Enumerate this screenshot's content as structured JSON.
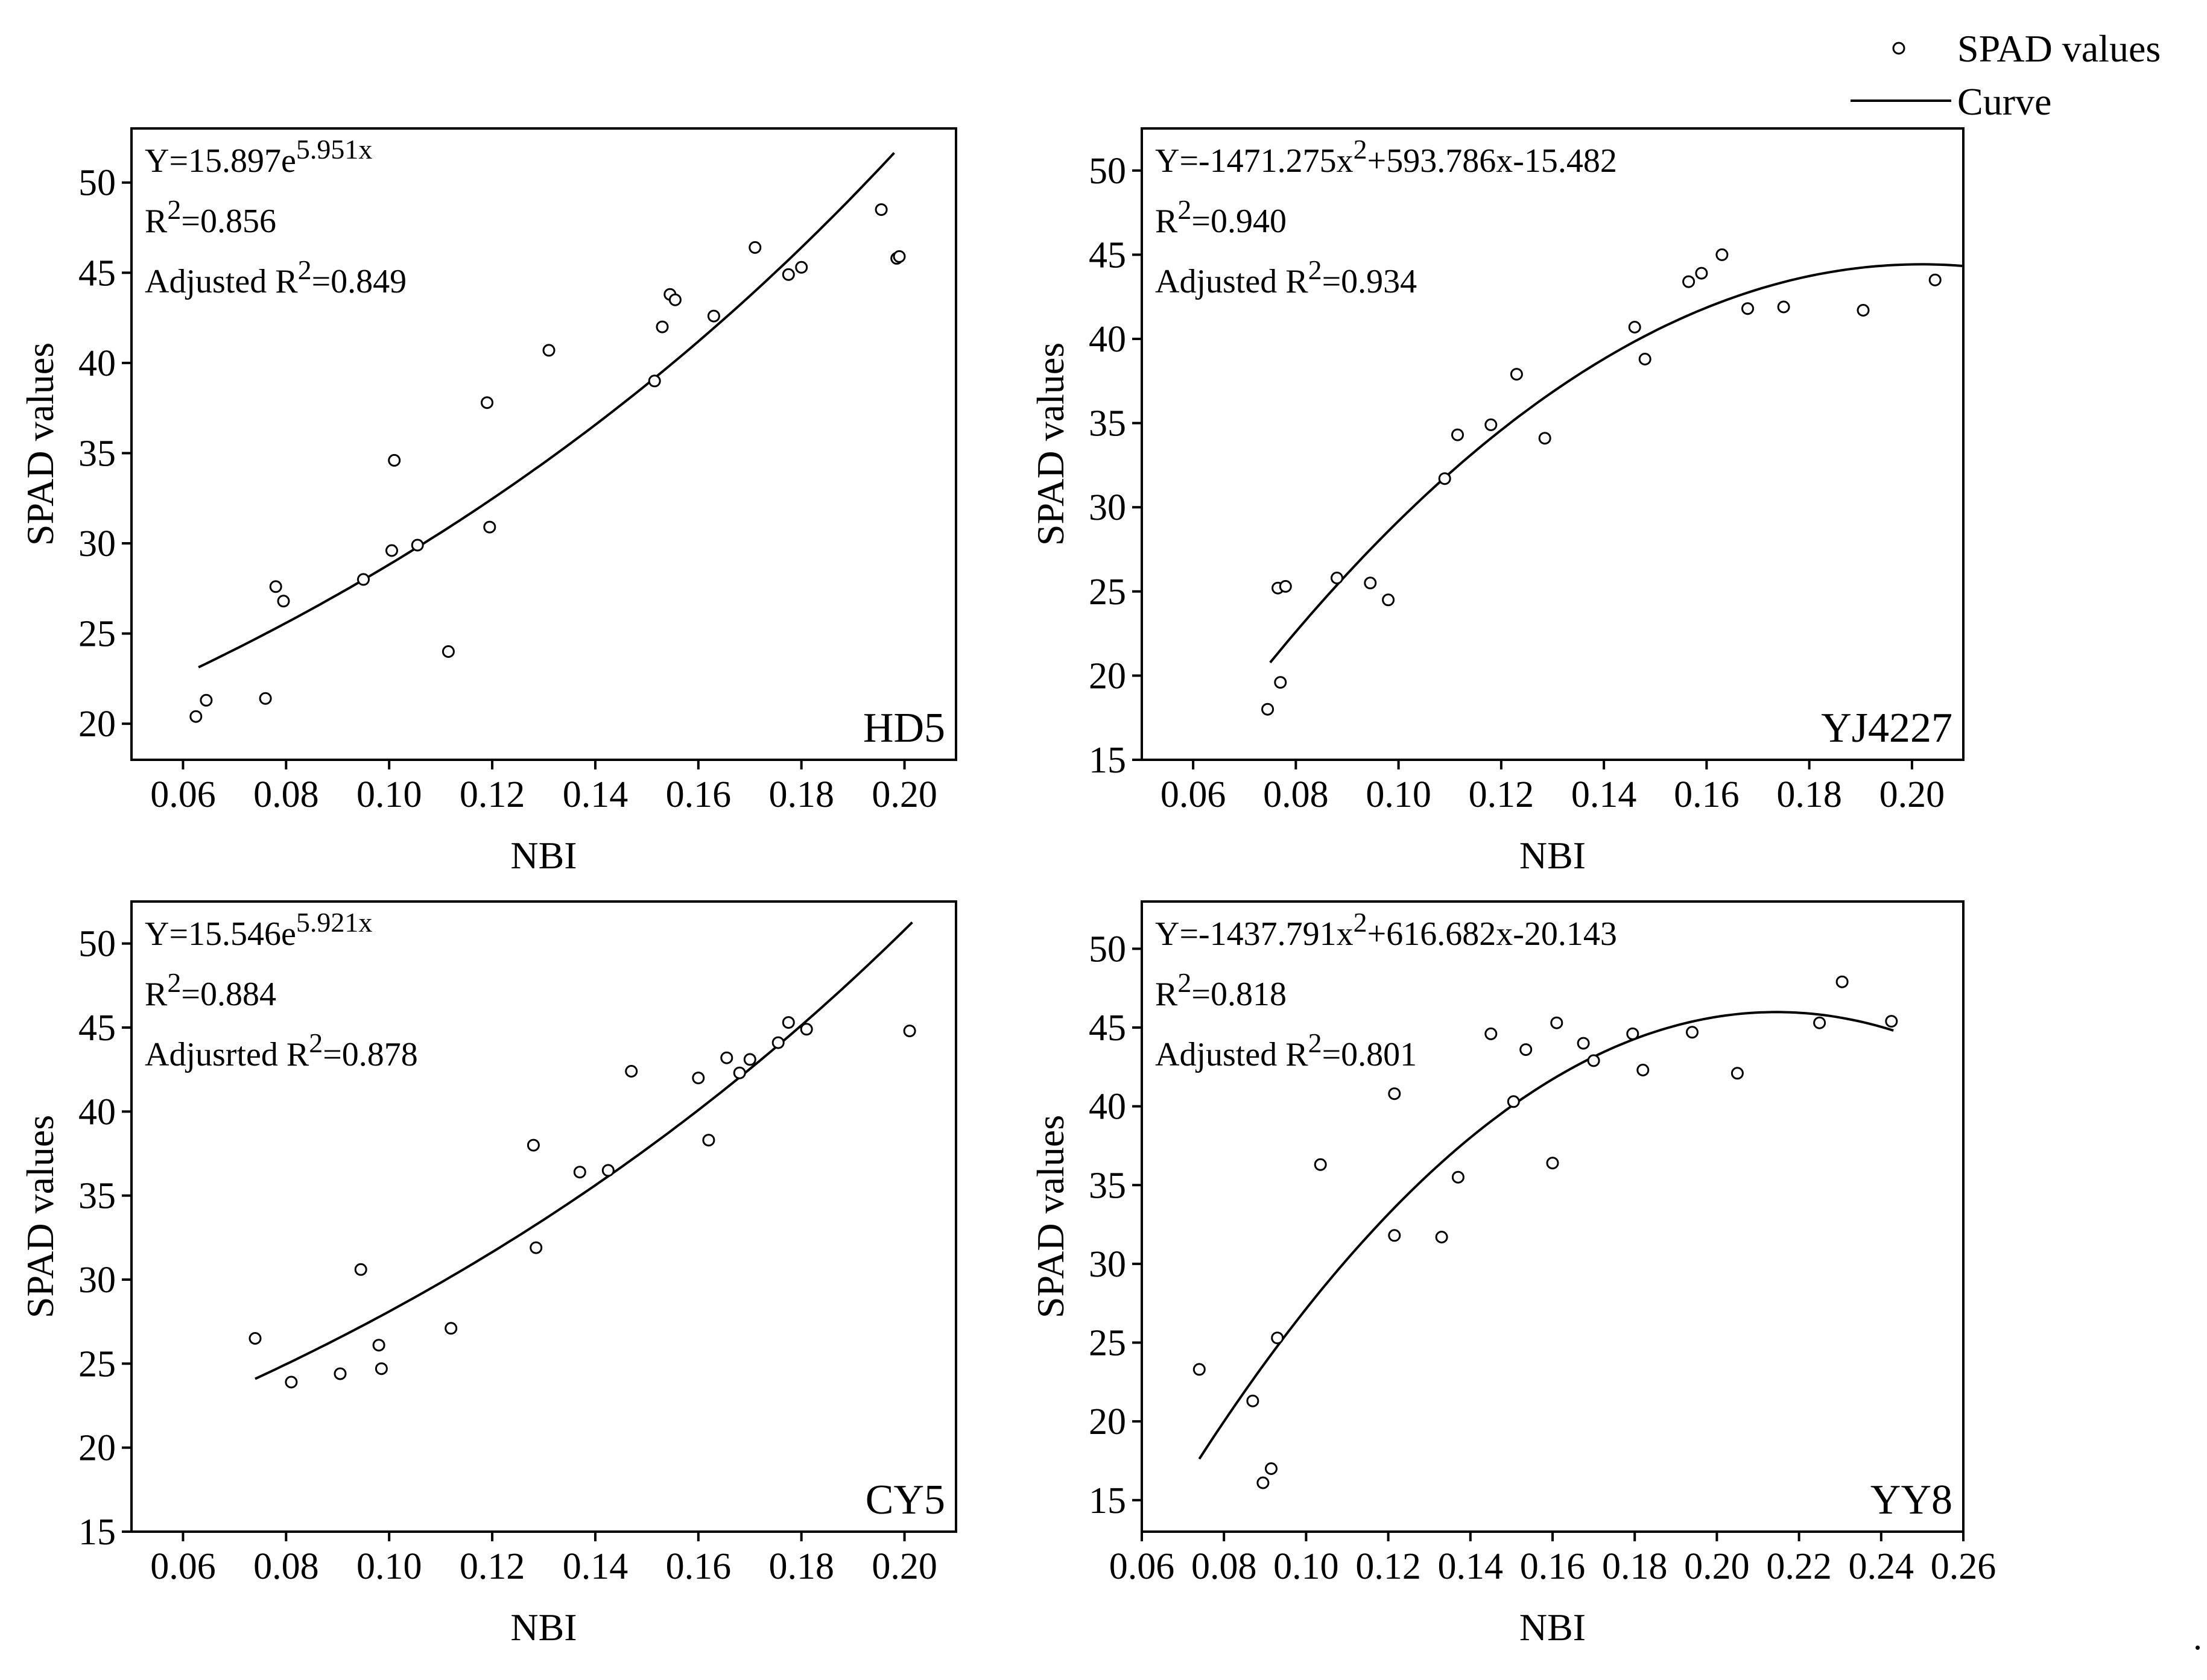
{
  "legend": {
    "points_label": "SPAD values",
    "curve_label": "Curve"
  },
  "chart_data": [
    {
      "type": "scatter",
      "panel": "HD5",
      "xlabel": "NBI",
      "ylabel": "SPAD values",
      "xlim": [
        0.05,
        0.21
      ],
      "ylim": [
        18,
        53
      ],
      "xticks": [
        0.06,
        0.08,
        0.1,
        0.12,
        0.14,
        0.16,
        0.18,
        0.2
      ],
      "xtick_labels": [
        "0.06",
        "0.08",
        "0.10",
        "0.12",
        "0.14",
        "0.16",
        "0.18",
        "0.20"
      ],
      "yticks": [
        20,
        25,
        30,
        35,
        40,
        45,
        50
      ],
      "ytick_labels": [
        "20",
        "25",
        "30",
        "35",
        "40",
        "45",
        "50"
      ],
      "equation": {
        "prefix": "Y=15.897e",
        "sup": "5.951x",
        "suffix": ""
      },
      "r2": "=0.856",
      "adj_label": "Adjusted R",
      "adj_value": "=0.849",
      "fit": {
        "kind": "exp",
        "a": 15.897,
        "b": 5.951,
        "x_range": [
          0.063,
          0.198
        ]
      },
      "points": [
        [
          0.0625,
          20.4
        ],
        [
          0.0645,
          21.3
        ],
        [
          0.076,
          21.4
        ],
        [
          0.078,
          27.6
        ],
        [
          0.0795,
          26.8
        ],
        [
          0.095,
          28.0
        ],
        [
          0.1005,
          29.6
        ],
        [
          0.101,
          34.6
        ],
        [
          0.1055,
          29.9
        ],
        [
          0.1115,
          24.0
        ],
        [
          0.119,
          37.8
        ],
        [
          0.1195,
          30.9
        ],
        [
          0.131,
          40.7
        ],
        [
          0.1515,
          39.0
        ],
        [
          0.153,
          42.0
        ],
        [
          0.1545,
          43.8
        ],
        [
          0.1555,
          43.5
        ],
        [
          0.163,
          42.6
        ],
        [
          0.171,
          46.4
        ],
        [
          0.1775,
          44.9
        ],
        [
          0.18,
          45.3
        ],
        [
          0.1955,
          48.5
        ],
        [
          0.1985,
          45.8
        ],
        [
          0.199,
          45.9
        ]
      ]
    },
    {
      "type": "scatter",
      "panel": "YJ4227",
      "xlabel": "NBI",
      "ylabel": "SPAD values",
      "xlim": [
        0.05,
        0.21
      ],
      "ylim": [
        15,
        52.5
      ],
      "xticks": [
        0.06,
        0.08,
        0.1,
        0.12,
        0.14,
        0.16,
        0.18,
        0.2
      ],
      "xtick_labels": [
        "0.06",
        "0.08",
        "0.10",
        "0.12",
        "0.14",
        "0.16",
        "0.18",
        "0.20"
      ],
      "yticks": [
        15,
        20,
        25,
        30,
        35,
        40,
        45,
        50
      ],
      "ytick_labels": [
        "15",
        "20",
        "25",
        "30",
        "35",
        "40",
        "45",
        "50"
      ],
      "equation": {
        "prefix": "Y=-1471.275x",
        "sup": "2",
        "suffix": "+593.786x-15.482"
      },
      "r2": "=0.940",
      "adj_label": "Adjusted R",
      "adj_value": "=0.934",
      "fit": {
        "kind": "quad",
        "a": -1471.275,
        "b": 593.786,
        "c": -15.482,
        "x_range": [
          0.075,
          0.21
        ]
      },
      "points": [
        [
          0.0745,
          18.0
        ],
        [
          0.0765,
          25.2
        ],
        [
          0.077,
          19.6
        ],
        [
          0.078,
          25.3
        ],
        [
          0.088,
          25.8
        ],
        [
          0.0945,
          25.5
        ],
        [
          0.098,
          24.5
        ],
        [
          0.109,
          31.7
        ],
        [
          0.1115,
          34.3
        ],
        [
          0.118,
          34.9
        ],
        [
          0.123,
          37.9
        ],
        [
          0.1285,
          34.1
        ],
        [
          0.146,
          40.7
        ],
        [
          0.148,
          38.8
        ],
        [
          0.1565,
          43.4
        ],
        [
          0.159,
          43.9
        ],
        [
          0.163,
          45.0
        ],
        [
          0.168,
          41.8
        ],
        [
          0.175,
          41.9
        ],
        [
          0.1905,
          41.7
        ],
        [
          0.2045,
          43.5
        ]
      ]
    },
    {
      "type": "scatter",
      "panel": "CY5",
      "xlabel": "NBI",
      "ylabel": "SPAD values",
      "xlim": [
        0.05,
        0.21
      ],
      "ylim": [
        15,
        52.5
      ],
      "xticks": [
        0.06,
        0.08,
        0.1,
        0.12,
        0.14,
        0.16,
        0.18,
        0.2
      ],
      "xtick_labels": [
        "0.06",
        "0.08",
        "0.10",
        "0.12",
        "0.14",
        "0.16",
        "0.18",
        "0.20"
      ],
      "yticks": [
        15,
        20,
        25,
        30,
        35,
        40,
        45,
        50
      ],
      "ytick_labels": [
        "15",
        "20",
        "25",
        "30",
        "35",
        "40",
        "45",
        "50"
      ],
      "equation": {
        "prefix": "Y=15.546e",
        "sup": "5.921x",
        "suffix": ""
      },
      "r2": "=0.884",
      "adj_label": "Adjusrted R",
      "adj_value": "=0.878",
      "fit": {
        "kind": "exp",
        "a": 15.546,
        "b": 5.921,
        "x_range": [
          0.074,
          0.2015
        ]
      },
      "points": [
        [
          0.074,
          26.5
        ],
        [
          0.081,
          23.9
        ],
        [
          0.0905,
          24.4
        ],
        [
          0.0945,
          30.6
        ],
        [
          0.098,
          26.1
        ],
        [
          0.0985,
          24.7
        ],
        [
          0.112,
          27.1
        ],
        [
          0.128,
          38.0
        ],
        [
          0.1285,
          31.9
        ],
        [
          0.137,
          36.4
        ],
        [
          0.1425,
          36.5
        ],
        [
          0.147,
          42.4
        ],
        [
          0.16,
          42.0
        ],
        [
          0.162,
          38.3
        ],
        [
          0.1655,
          43.2
        ],
        [
          0.168,
          42.3
        ],
        [
          0.17,
          43.1
        ],
        [
          0.1755,
          44.1
        ],
        [
          0.1775,
          45.3
        ],
        [
          0.181,
          44.9
        ],
        [
          0.201,
          44.8
        ]
      ]
    },
    {
      "type": "scatter",
      "panel": "YY8",
      "xlabel": "NBI",
      "ylabel": "SPAD values",
      "xlim": [
        0.06,
        0.26
      ],
      "ylim": [
        13,
        53
      ],
      "xticks": [
        0.06,
        0.08,
        0.1,
        0.12,
        0.14,
        0.16,
        0.18,
        0.2,
        0.22,
        0.24,
        0.26
      ],
      "xtick_labels": [
        "0.06",
        "0.08",
        "0.10",
        "0.12",
        "0.14",
        "0.16",
        "0.18",
        "0.20",
        "0.22",
        "0.24",
        "0.26"
      ],
      "yticks": [
        15,
        20,
        25,
        30,
        35,
        40,
        45,
        50
      ],
      "ytick_labels": [
        "15",
        "20",
        "25",
        "30",
        "35",
        "40",
        "45",
        "50"
      ],
      "equation": {
        "prefix": "Y=-1437.791x",
        "sup": "2",
        "suffix": "+616.682x-20.143"
      },
      "r2": "=0.818",
      "adj_label": "Adjusted R",
      "adj_value": "=0.801",
      "fit": {
        "kind": "quad",
        "a": -1437.791,
        "b": 616.682,
        "c": -20.143,
        "x_range": [
          0.074,
          0.243
        ]
      },
      "points": [
        [
          0.074,
          23.3
        ],
        [
          0.087,
          21.3
        ],
        [
          0.0895,
          16.1
        ],
        [
          0.0915,
          17.0
        ],
        [
          0.093,
          25.3
        ],
        [
          0.1035,
          36.3
        ],
        [
          0.1215,
          40.8
        ],
        [
          0.1215,
          31.8
        ],
        [
          0.133,
          31.7
        ],
        [
          0.137,
          35.5
        ],
        [
          0.145,
          44.6
        ],
        [
          0.1505,
          40.3
        ],
        [
          0.1535,
          43.6
        ],
        [
          0.16,
          36.4
        ],
        [
          0.161,
          45.3
        ],
        [
          0.1675,
          44.0
        ],
        [
          0.17,
          42.9
        ],
        [
          0.1795,
          44.6
        ],
        [
          0.182,
          42.3
        ],
        [
          0.194,
          44.7
        ],
        [
          0.205,
          42.1
        ],
        [
          0.225,
          45.3
        ],
        [
          0.2305,
          47.9
        ],
        [
          0.2425,
          45.4
        ]
      ]
    }
  ]
}
